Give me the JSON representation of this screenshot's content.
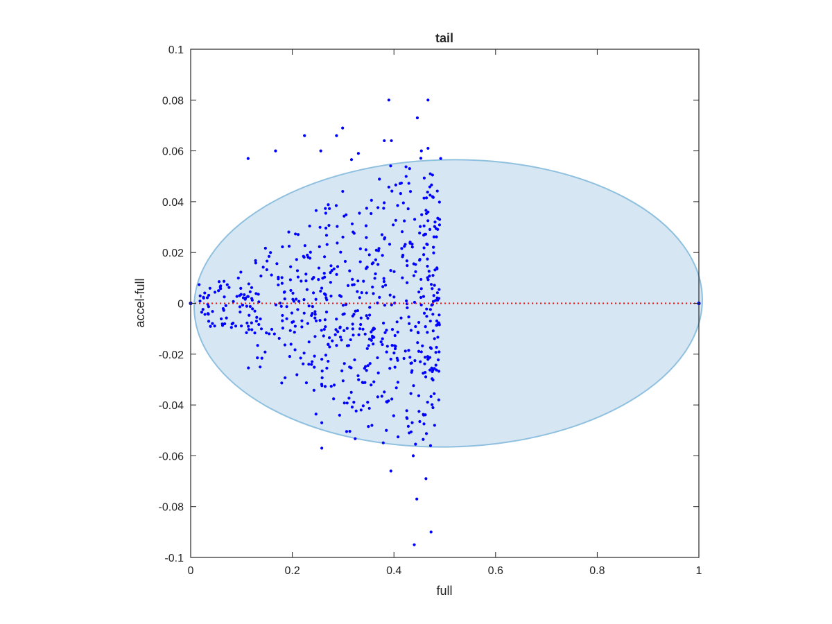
{
  "chart_data": {
    "type": "scatter",
    "title": "tail",
    "xlabel": "full",
    "ylabel": "accel-full",
    "xlim": [
      0,
      1
    ],
    "ylim": [
      -0.1,
      0.1
    ],
    "x_ticks": [
      0,
      0.2,
      0.4,
      0.6,
      0.8,
      1
    ],
    "x_tick_labels": [
      "0",
      "0.2",
      "0.4",
      "0.6",
      "0.8",
      "1"
    ],
    "y_ticks": [
      -0.1,
      -0.08,
      -0.06,
      -0.04,
      -0.02,
      0,
      0.02,
      0.04,
      0.06,
      0.08,
      0.1
    ],
    "y_tick_labels": [
      "-0.1",
      "-0.08",
      "-0.06",
      "-0.04",
      "-0.02",
      "0",
      "0.02",
      "0.04",
      "0.06",
      "0.08",
      "0.1"
    ],
    "grid": false,
    "colors": {
      "points": "#0000ff",
      "ellipse_fill": "#d6e7f3",
      "ellipse_edge": "#8fc0df",
      "reference_line": "#ff0000",
      "axes": "#262626"
    },
    "ellipse": {
      "x_center": 0.5,
      "y_center": 0,
      "x_radius": 0.5,
      "y_radius": 0.0565,
      "shape": "filled ellipse with slight left tilt"
    },
    "reference_line": {
      "y": 0,
      "x_range": [
        0,
        1
      ],
      "style": "dotted"
    },
    "endpoint_markers": [
      [
        0,
        0
      ],
      [
        1,
        0
      ]
    ],
    "series": [
      {
        "x_range": [
          0,
          0.49
        ],
        "y_range": [
          -0.095,
          0.08
        ],
        "sample_points": [
          [
            0.113,
            0.057
          ],
          [
            0.167,
            0.06
          ],
          [
            0.224,
            0.066
          ],
          [
            0.256,
            0.06
          ],
          [
            0.287,
            0.066
          ],
          [
            0.299,
            0.069
          ],
          [
            0.33,
            0.059
          ],
          [
            0.381,
            0.064
          ],
          [
            0.39,
            0.08
          ],
          [
            0.446,
            0.073
          ],
          [
            0.467,
            0.08
          ],
          [
            0.492,
            0.057
          ],
          [
            0.454,
            0.06
          ],
          [
            0.467,
            0.061
          ],
          [
            0.395,
            0.064
          ],
          [
            0.258,
            -0.047
          ],
          [
            0.258,
            -0.057
          ],
          [
            0.394,
            -0.066
          ],
          [
            0.438,
            -0.06
          ],
          [
            0.445,
            -0.077
          ],
          [
            0.463,
            -0.069
          ],
          [
            0.473,
            -0.09
          ],
          [
            0.44,
            -0.095
          ],
          [
            0.472,
            -0.056
          ],
          [
            0.385,
            -0.05
          ],
          [
            0.43,
            -0.051
          ],
          [
            0.48,
            -0.048
          ]
        ]
      }
    ]
  }
}
